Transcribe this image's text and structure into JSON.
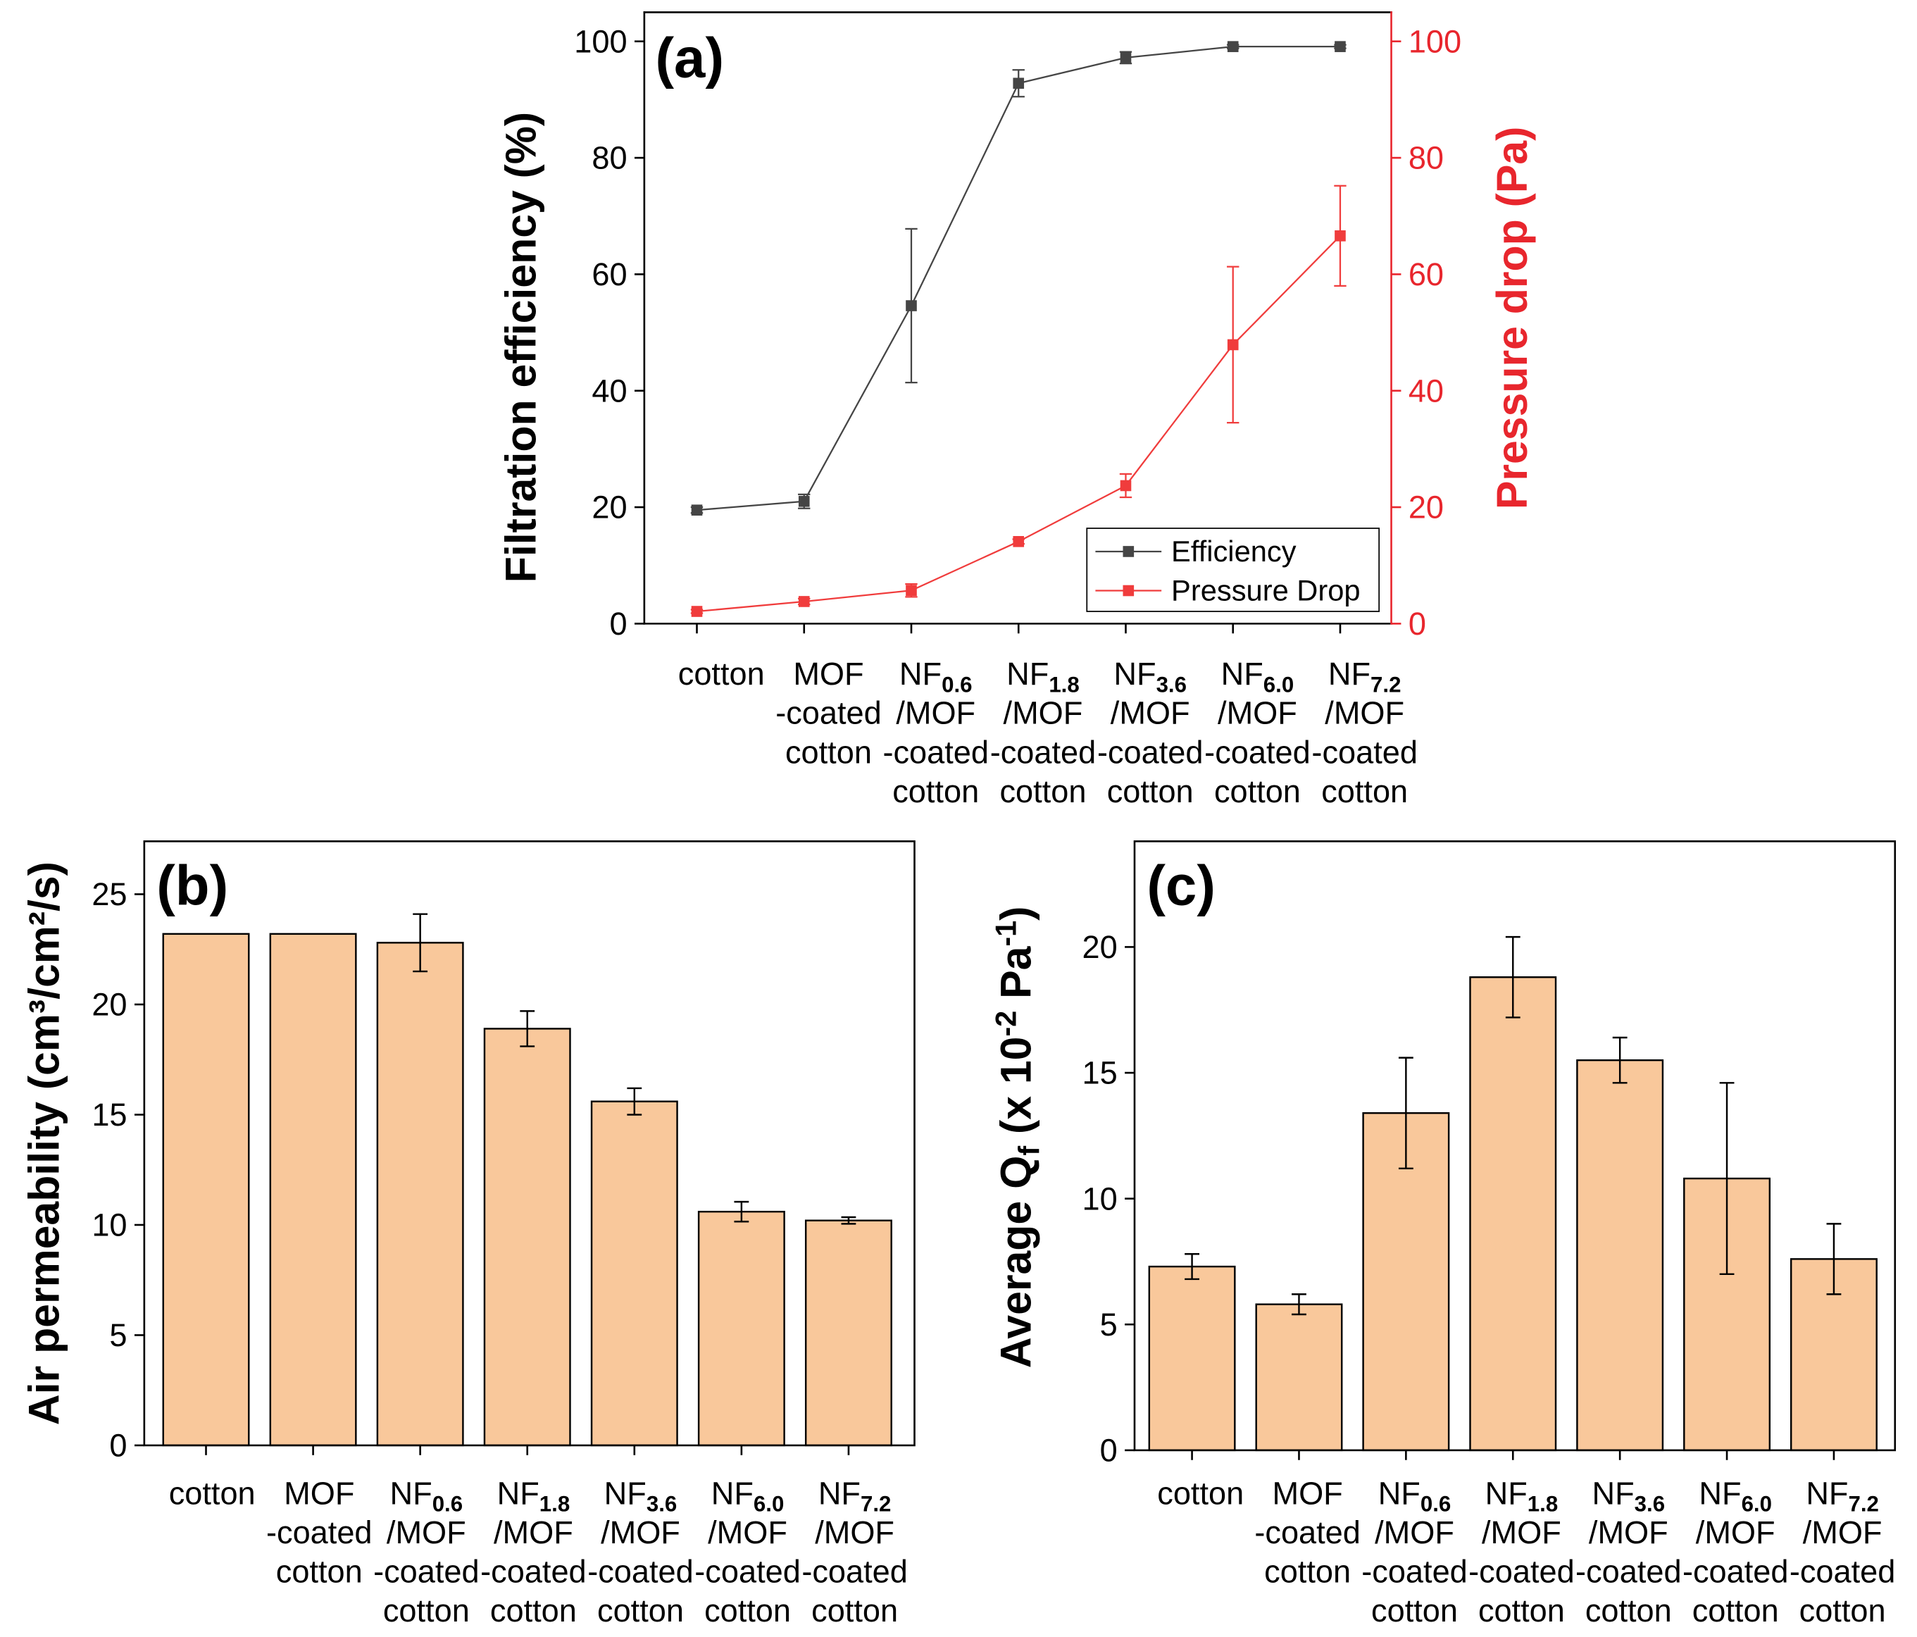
{
  "chart_data": [
    {
      "panel": "(a)",
      "type": "line",
      "categories": [
        {
          "lines": [
            "cotton"
          ]
        },
        {
          "lines": [
            "MOF",
            "-coated",
            "cotton"
          ]
        },
        {
          "head": "NF",
          "sub": "0.6",
          "lines": [
            "/MOF",
            "-coated",
            "cotton"
          ]
        },
        {
          "head": "NF",
          "sub": "1.8",
          "lines": [
            "/MOF",
            "-coated",
            "cotton"
          ]
        },
        {
          "head": "NF",
          "sub": "3.6",
          "lines": [
            "/MOF",
            "-coated",
            "cotton"
          ]
        },
        {
          "head": "NF",
          "sub": "6.0",
          "lines": [
            "/MOF",
            "-coated",
            "cotton"
          ]
        },
        {
          "head": "NF",
          "sub": "7.2",
          "lines": [
            "/MOF",
            "-coated",
            "cotton"
          ]
        }
      ],
      "ylabel": "Filtration efficiency (%)",
      "ylabel_right": "Pressure drop (Pa)",
      "ylim": [
        0,
        105
      ],
      "ylim_right": [
        0,
        105
      ],
      "yticks": [
        0,
        20,
        40,
        60,
        80,
        100
      ],
      "yticks_right": [
        0,
        20,
        40,
        60,
        80,
        100
      ],
      "right_axis_color": "#e8262d",
      "series": [
        {
          "name": "Efficiency",
          "color": "#454545",
          "secondary_axis": false,
          "values": [
            19.5,
            21.0,
            54.6,
            92.8,
            97.2,
            99.1,
            99.1
          ],
          "errors": [
            0.5,
            1.2,
            13.2,
            2.3,
            1.0,
            0.3,
            0.3
          ]
        },
        {
          "name": "Pressure Drop",
          "color": "#f03c3c",
          "secondary_axis": true,
          "values": [
            2.1,
            3.8,
            5.7,
            14.1,
            23.7,
            47.9,
            66.6
          ],
          "errors": [
            0.3,
            0.5,
            1.1,
            0.4,
            2.0,
            13.4,
            8.6
          ]
        }
      ]
    },
    {
      "panel": "(b)",
      "type": "bar",
      "categories": [
        {
          "lines": [
            "cotton"
          ]
        },
        {
          "lines": [
            "MOF",
            "-coated",
            "cotton"
          ]
        },
        {
          "head": "NF",
          "sub": "0.6",
          "lines": [
            "/MOF",
            "-coated",
            "cotton"
          ]
        },
        {
          "head": "NF",
          "sub": "1.8",
          "lines": [
            "/MOF",
            "-coated",
            "cotton"
          ]
        },
        {
          "head": "NF",
          "sub": "3.6",
          "lines": [
            "/MOF",
            "-coated",
            "cotton"
          ]
        },
        {
          "head": "NF",
          "sub": "6.0",
          "lines": [
            "/MOF",
            "-coated",
            "cotton"
          ]
        },
        {
          "head": "NF",
          "sub": "7.2",
          "lines": [
            "/MOF",
            "-coated",
            "cotton"
          ]
        }
      ],
      "ylabel": "Air permeability (cm³/cm²/s)",
      "ylim": [
        0,
        27.4
      ],
      "yticks": [
        0,
        5,
        10,
        15,
        20,
        25
      ],
      "bar_color": "#f9c89b",
      "values": [
        23.2,
        23.2,
        22.8,
        18.9,
        15.6,
        10.6,
        10.2
      ],
      "errors": [
        0,
        0,
        1.3,
        0.8,
        0.6,
        0.45,
        0.15
      ]
    },
    {
      "panel": "(c)",
      "type": "bar",
      "categories": [
        {
          "lines": [
            "cotton"
          ]
        },
        {
          "lines": [
            "MOF",
            "-coated",
            "cotton"
          ]
        },
        {
          "head": "NF",
          "sub": "0.6",
          "lines": [
            "/MOF",
            "-coated",
            "cotton"
          ]
        },
        {
          "head": "NF",
          "sub": "1.8",
          "lines": [
            "/MOF",
            "-coated",
            "cotton"
          ]
        },
        {
          "head": "NF",
          "sub": "3.6",
          "lines": [
            "/MOF",
            "-coated",
            "cotton"
          ]
        },
        {
          "head": "NF",
          "sub": "6.0",
          "lines": [
            "/MOF",
            "-coated",
            "cotton"
          ]
        },
        {
          "head": "NF",
          "sub": "7.2",
          "lines": [
            "/MOF",
            "-coated",
            "cotton"
          ]
        }
      ],
      "ylabel_parts": [
        {
          "text": "Average Q"
        },
        {
          "text": "f",
          "sub": true
        },
        {
          "text": " (x 10"
        },
        {
          "text": "-2",
          "sup": true
        },
        {
          "text": " Pa"
        },
        {
          "text": "-1",
          "sup": true
        },
        {
          "text": ")"
        }
      ],
      "ylim": [
        0,
        24.2
      ],
      "yticks": [
        0,
        5,
        10,
        15,
        20
      ],
      "bar_color": "#f9c89b",
      "values": [
        7.3,
        5.8,
        13.4,
        18.8,
        15.5,
        10.8,
        7.6
      ],
      "errors": [
        0.5,
        0.4,
        2.2,
        1.6,
        0.9,
        3.8,
        1.4
      ]
    }
  ]
}
